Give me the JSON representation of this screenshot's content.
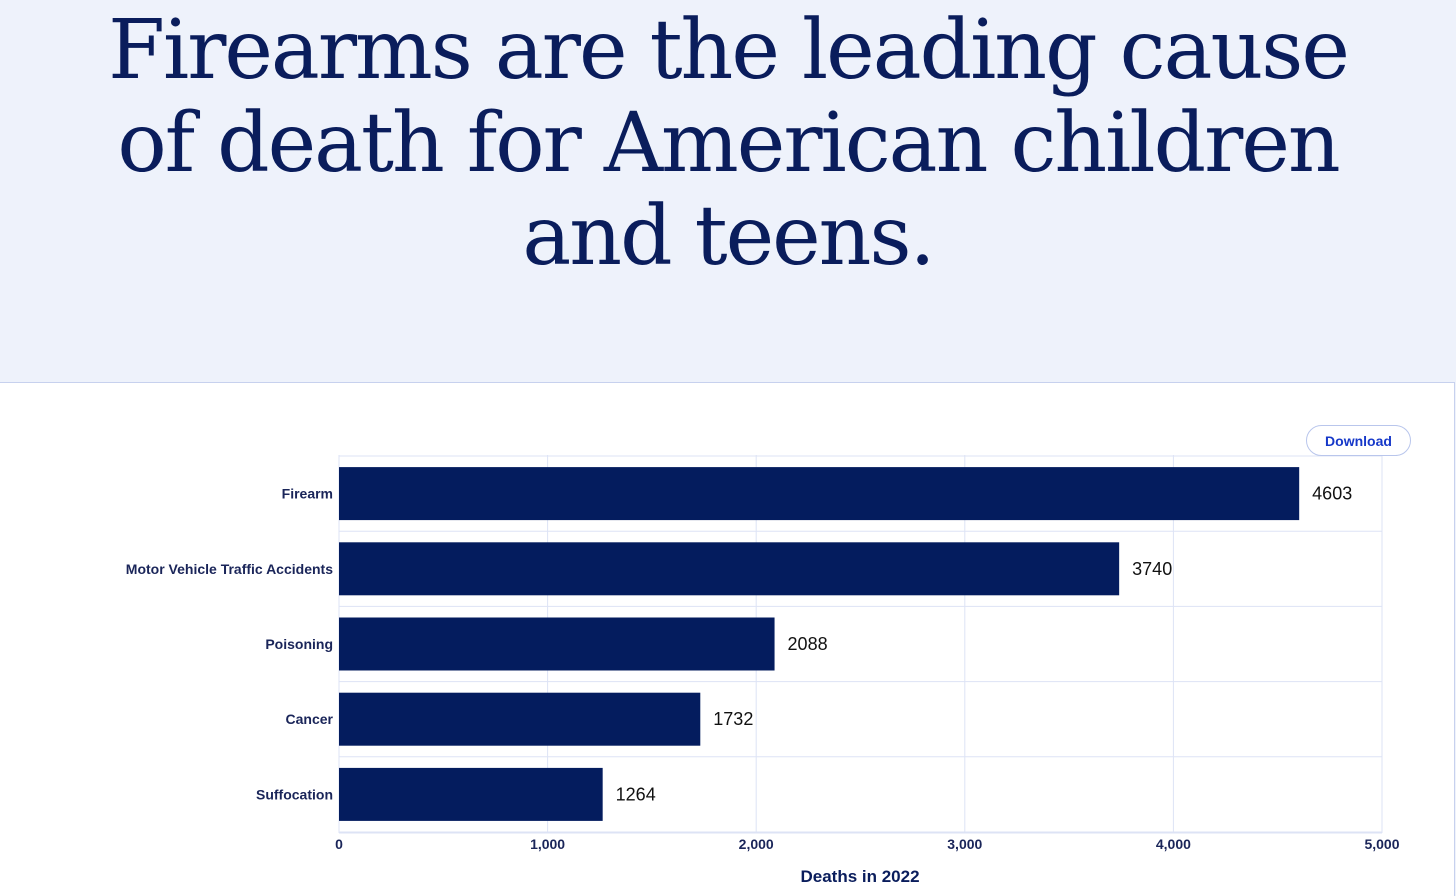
{
  "headline": {
    "line1": "Firearms are the leading cause",
    "line2": "of death for American children",
    "line3": "and teens."
  },
  "toolbar": {
    "download_label": "Download"
  },
  "colors": {
    "bar": "#041c5e",
    "grid": "#dde3f5",
    "background": "#eff3fb"
  },
  "chart_data": {
    "type": "bar",
    "orientation": "horizontal",
    "categories": [
      "Firearm",
      "Motor Vehicle Traffic Accidents",
      "Poisoning",
      "Cancer",
      "Suffocation"
    ],
    "values": [
      4603,
      3740,
      2088,
      1732,
      1264
    ],
    "data_labels": [
      "4603",
      "3740",
      "2088",
      "1732",
      "1264"
    ],
    "xlabel": "Deaths in 2022",
    "ylabel": "",
    "xlim": [
      0,
      5000
    ],
    "ticks": [
      0,
      1000,
      2000,
      3000,
      4000,
      5000
    ],
    "tick_labels": [
      "0",
      "1,000",
      "2,000",
      "3,000",
      "4,000",
      "5,000"
    ],
    "grid": true
  }
}
